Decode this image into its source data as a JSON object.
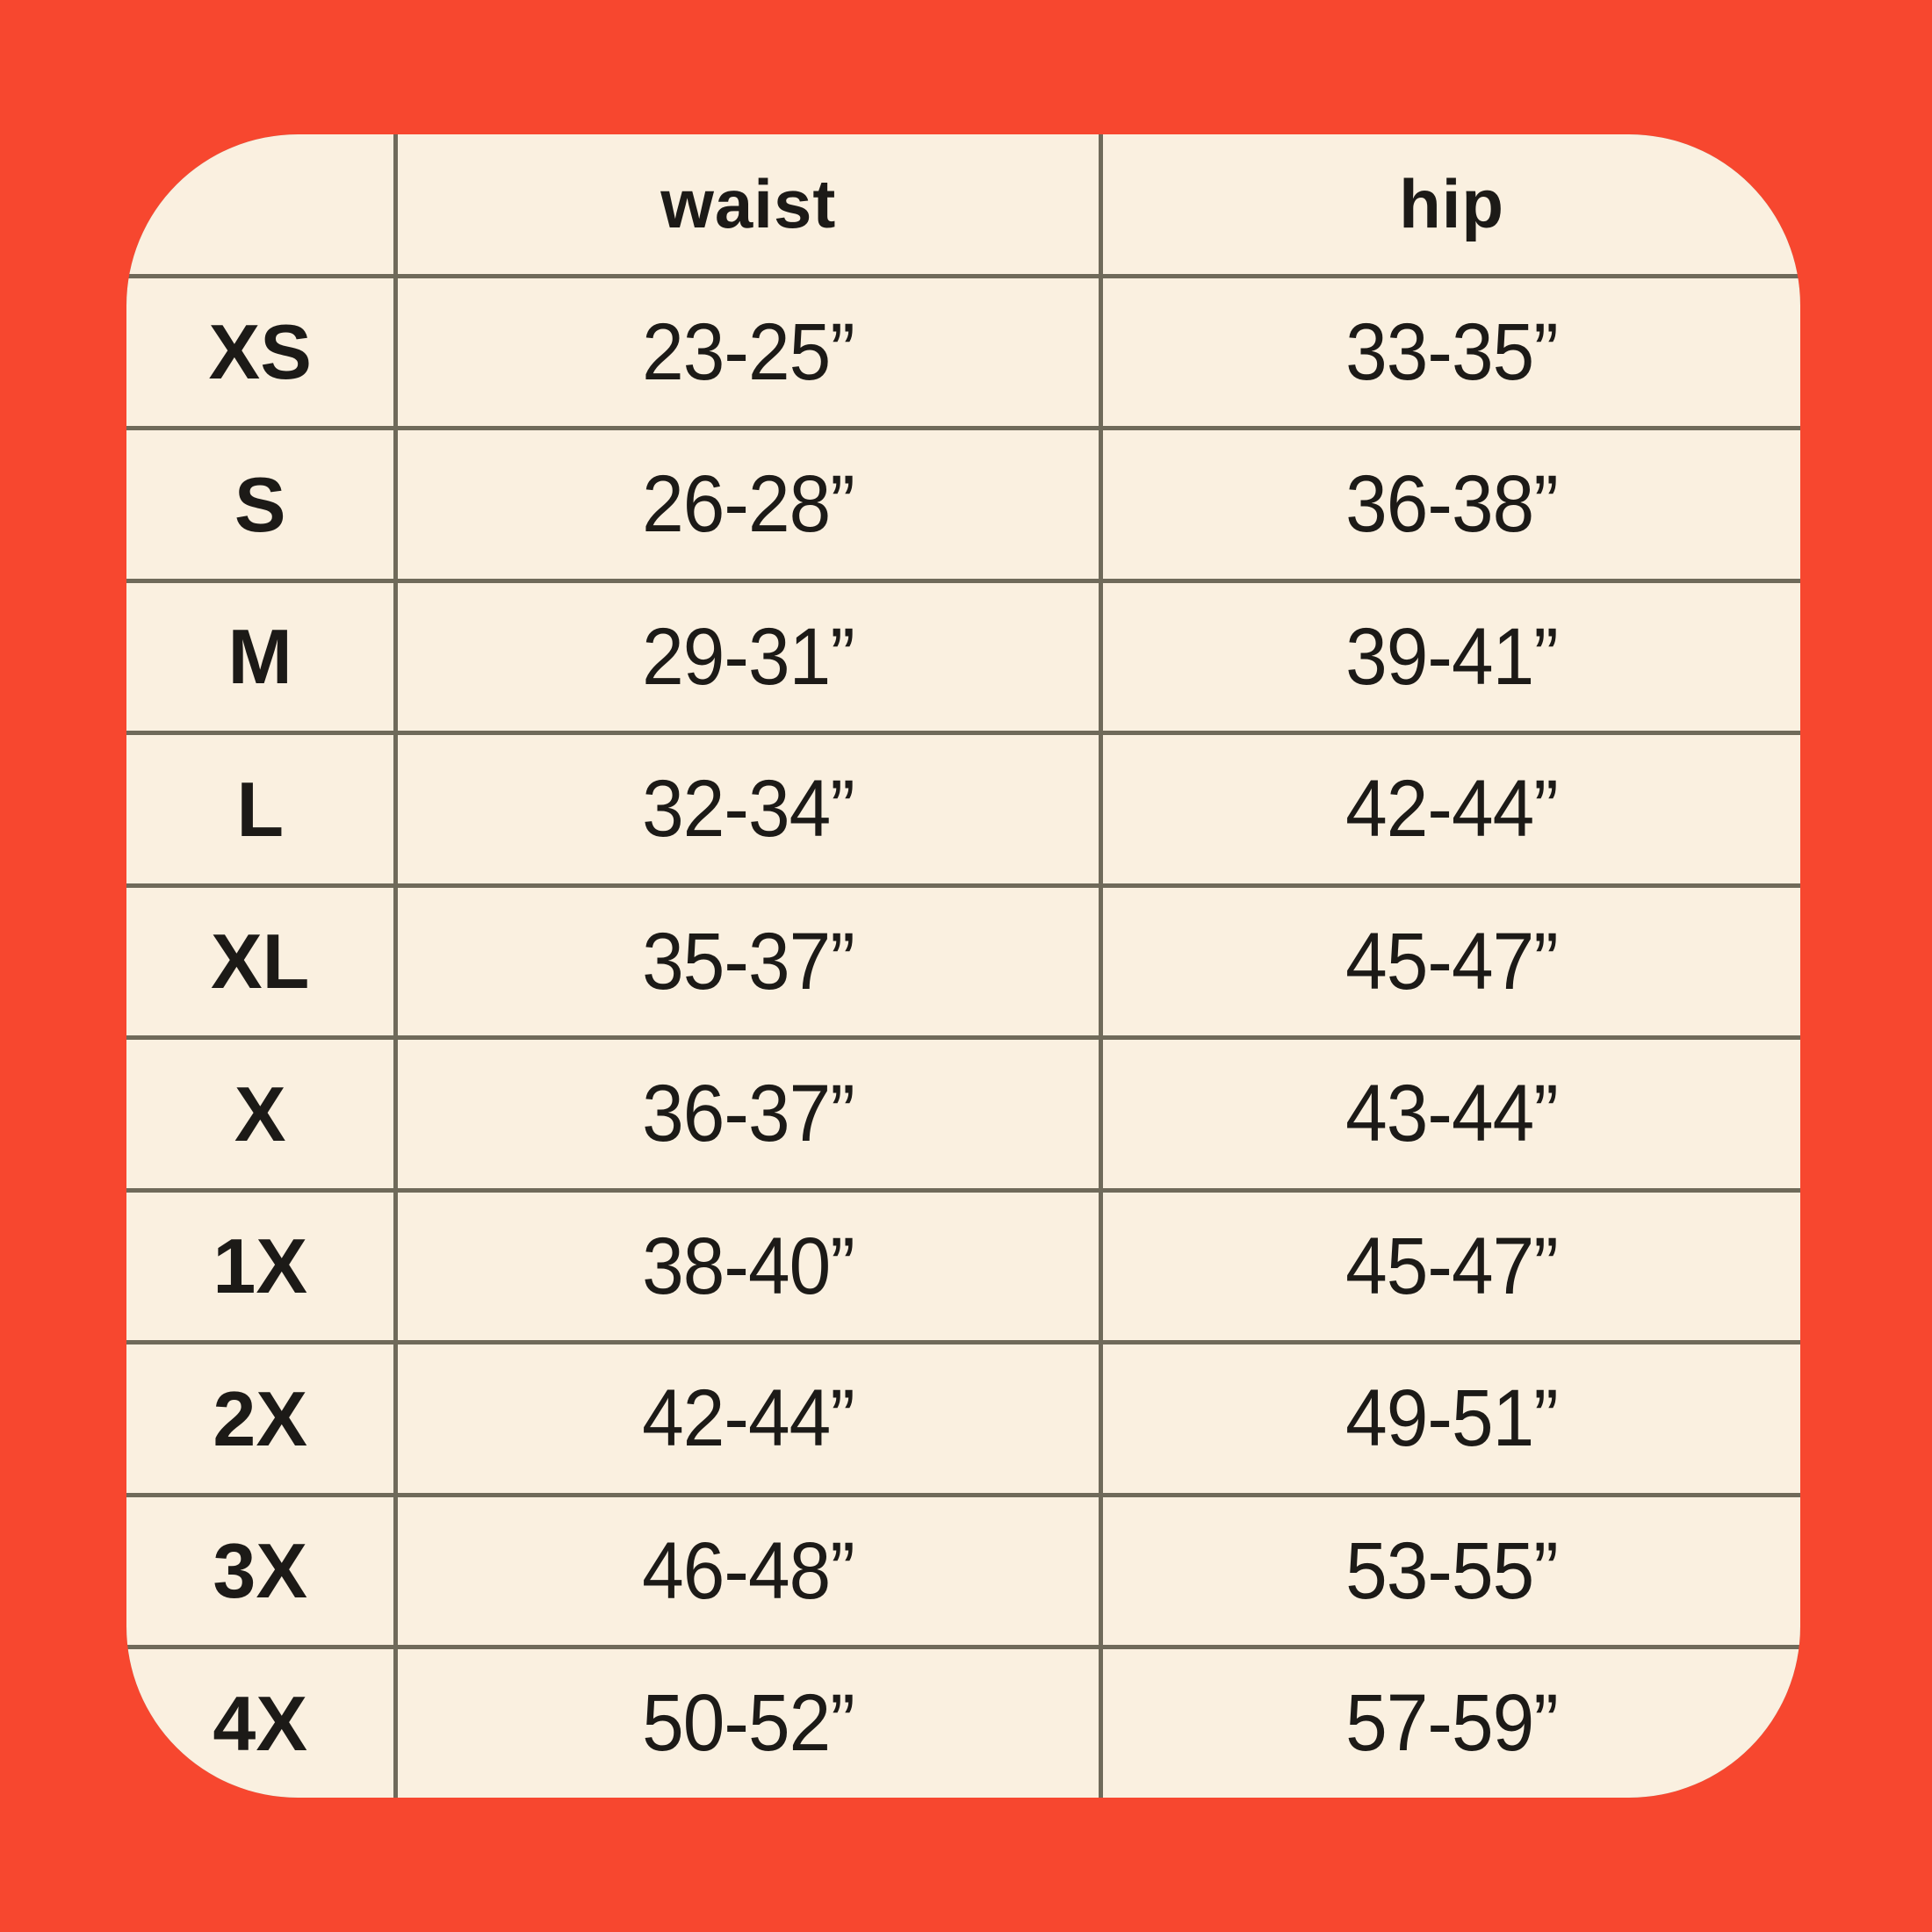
{
  "colors": {
    "background": "#F7472F",
    "card": "#FAF0E0",
    "grid_line": "#6F6A5A",
    "text": "#1C1A17"
  },
  "chart_data": {
    "type": "table",
    "title": "",
    "columns": [
      "",
      "waist",
      "hip"
    ],
    "rows": [
      {
        "size": "XS",
        "waist": "23-25”",
        "hip": "33-35”"
      },
      {
        "size": "S",
        "waist": "26-28”",
        "hip": "36-38”"
      },
      {
        "size": "M",
        "waist": "29-31”",
        "hip": "39-41”"
      },
      {
        "size": "L",
        "waist": "32-34”",
        "hip": "42-44”"
      },
      {
        "size": "XL",
        "waist": "35-37”",
        "hip": "45-47”"
      },
      {
        "size": "X",
        "waist": "36-37”",
        "hip": "43-44”"
      },
      {
        "size": "1X",
        "waist": "38-40”",
        "hip": "45-47”"
      },
      {
        "size": "2X",
        "waist": "42-44”",
        "hip": "49-51”"
      },
      {
        "size": "3X",
        "waist": "46-48”",
        "hip": "53-55”"
      },
      {
        "size": "4X",
        "waist": "50-52”",
        "hip": "57-59”"
      }
    ]
  }
}
